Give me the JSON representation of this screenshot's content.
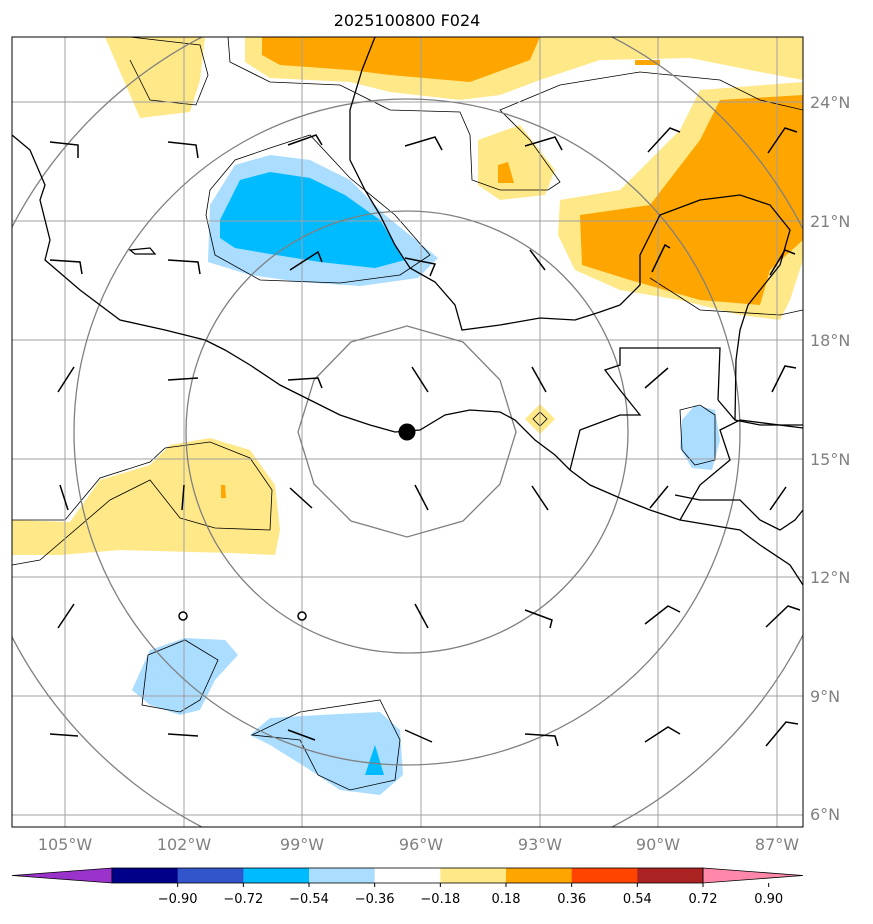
{
  "title": "2025100800 F024",
  "lon_ticks": [
    "105°W",
    "102°W",
    "99°W",
    "96°W",
    "93°W",
    "90°W",
    "87°W"
  ],
  "lat_ticks": [
    "24°N",
    "21°N",
    "18°N",
    "15°N",
    "12°N",
    "9°N",
    "6°N"
  ],
  "colorbar": {
    "colors": [
      "#9933cc",
      "#000088",
      "#3355cc",
      "#00bbff",
      "#aaddff",
      "#ffffff",
      "#ffe888",
      "#ffa500",
      "#ff4400",
      "#aa2222",
      "#ff88aa"
    ],
    "labels": [
      "−0.90",
      "−0.72",
      "−0.54",
      "−0.36",
      "−0.18",
      "0.18",
      "0.36",
      "0.54",
      "0.72",
      "0.90"
    ]
  },
  "colors": {
    "light_yellow": "#ffe888",
    "orange": "#ffa500",
    "light_blue": "#aaddff",
    "cyan": "#00bbff",
    "grid": "#a0a0a0",
    "range_ring": "#808080",
    "coast": "#000000"
  }
}
